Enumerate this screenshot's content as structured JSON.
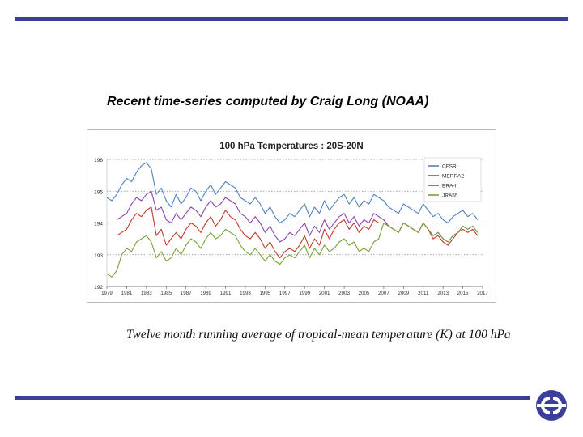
{
  "slide": {
    "title": "Recent time-series computed by Craig Long (NOAA)",
    "caption": "Twelve month running average of tropical-mean temperature (K) at 100 hPa",
    "rule_color": "#3b3f9a",
    "logo_icon": "ecmwf-logo-icon"
  },
  "chart_data": {
    "type": "line",
    "title": "100 hPa Temperatures : 20S-20N",
    "xlabel": "",
    "ylabel": "",
    "xlim": [
      1979,
      2017
    ],
    "ylim": [
      192,
      196
    ],
    "yticks": [
      192,
      193,
      194,
      195,
      196
    ],
    "xticks": [
      "1979",
      "1981",
      "1983",
      "1985",
      "1987",
      "1989",
      "1991",
      "1993",
      "1995",
      "1997",
      "1999",
      "2001",
      "2003",
      "2005",
      "2007",
      "2009",
      "2011",
      "2013",
      "2015",
      "2017"
    ],
    "grid": "dotted horizontal",
    "legend_position": "top-right",
    "series": [
      {
        "name": "CFSR",
        "color": "#4f81bd",
        "x": [
          1979,
          1979.5,
          1980,
          1980.5,
          1981,
          1981.5,
          1982,
          1982.5,
          1983,
          1983.5,
          1984,
          1984.5,
          1985,
          1985.5,
          1986,
          1986.5,
          1987,
          1987.5,
          1988,
          1988.5,
          1989,
          1989.5,
          1990,
          1990.5,
          1991,
          1991.5,
          1992,
          1992.5,
          1993,
          1993.5,
          1994,
          1994.5,
          1995,
          1995.5,
          1996,
          1996.5,
          1997,
          1997.5,
          1998,
          1998.5,
          1999,
          1999.5,
          2000,
          2000.5,
          2001,
          2001.5,
          2002,
          2002.5,
          2003,
          2003.5,
          2004,
          2004.5,
          2005,
          2005.5,
          2006,
          2006.5,
          2007,
          2007.5,
          2008,
          2008.5,
          2009,
          2009.5,
          2010,
          2010.5,
          2011,
          2011.5,
          2012,
          2012.5,
          2013,
          2013.5,
          2014,
          2014.5,
          2015,
          2015.5,
          2016,
          2016.5
        ],
        "values": [
          194.8,
          194.7,
          194.9,
          195.2,
          195.4,
          195.3,
          195.6,
          195.8,
          195.9,
          195.7,
          194.9,
          195.1,
          194.7,
          194.5,
          194.9,
          194.6,
          194.8,
          195.1,
          195.0,
          194.7,
          195.0,
          195.2,
          194.9,
          195.1,
          195.3,
          195.2,
          195.1,
          194.8,
          194.7,
          194.6,
          194.8,
          194.6,
          194.3,
          194.5,
          194.2,
          194.0,
          194.1,
          194.3,
          194.2,
          194.4,
          194.6,
          194.2,
          194.5,
          194.3,
          194.7,
          194.4,
          194.6,
          194.8,
          194.9,
          194.6,
          194.8,
          194.5,
          194.7,
          194.6,
          194.9,
          194.8,
          194.7,
          194.5,
          194.4,
          194.3,
          194.6,
          194.5,
          194.4,
          194.3,
          194.6,
          194.4,
          194.2,
          194.3,
          194.1,
          194.0,
          194.2,
          194.3,
          194.4,
          194.2,
          194.3,
          194.1
        ]
      },
      {
        "name": "MERRA2",
        "color": "#8e44ad",
        "x": [
          1980,
          1980.5,
          1981,
          1981.5,
          1982,
          1982.5,
          1983,
          1983.5,
          1984,
          1984.5,
          1985,
          1985.5,
          1986,
          1986.5,
          1987,
          1987.5,
          1988,
          1988.5,
          1989,
          1989.5,
          1990,
          1990.5,
          1991,
          1991.5,
          1992,
          1992.5,
          1993,
          1993.5,
          1994,
          1994.5,
          1995,
          1995.5,
          1996,
          1996.5,
          1997,
          1997.5,
          1998,
          1998.5,
          1999,
          1999.5,
          2000,
          2000.5,
          2001,
          2001.5,
          2002,
          2002.5,
          2003,
          2003.5,
          2004,
          2004.5,
          2005,
          2005.5,
          2006,
          2006.5,
          2007,
          2007.5,
          2008,
          2008.5,
          2009,
          2009.5,
          2010,
          2010.5,
          2011,
          2011.5,
          2012,
          2012.5,
          2013,
          2013.5,
          2014,
          2014.5,
          2015,
          2015.5,
          2016,
          2016.5
        ],
        "values": [
          194.1,
          194.2,
          194.3,
          194.6,
          194.8,
          194.7,
          194.9,
          195.0,
          194.4,
          194.5,
          194.1,
          194.0,
          194.3,
          194.1,
          194.3,
          194.5,
          194.4,
          194.2,
          194.5,
          194.7,
          194.5,
          194.6,
          194.8,
          194.7,
          194.6,
          194.3,
          194.2,
          194.0,
          194.2,
          194.0,
          193.7,
          193.9,
          193.6,
          193.4,
          193.5,
          193.7,
          193.6,
          193.8,
          194.0,
          193.6,
          193.9,
          193.7,
          194.1,
          193.8,
          194.0,
          194.2,
          194.3,
          194.0,
          194.2,
          193.9,
          194.1,
          194.0,
          194.3,
          194.2,
          194.1,
          193.9,
          193.8,
          193.7,
          194.0,
          193.9,
          193.8,
          193.7,
          194.0,
          193.8,
          193.6,
          193.7,
          193.5,
          193.4,
          193.6,
          193.7,
          193.9,
          193.8,
          193.9,
          193.7
        ]
      },
      {
        "name": "ERA-I",
        "color": "#c0392b",
        "x": [
          1980,
          1980.5,
          1981,
          1981.5,
          1982,
          1982.5,
          1983,
          1983.5,
          1984,
          1984.5,
          1985,
          1985.5,
          1986,
          1986.5,
          1987,
          1987.5,
          1988,
          1988.5,
          1989,
          1989.5,
          1990,
          1990.5,
          1991,
          1991.5,
          1992,
          1992.5,
          1993,
          1993.5,
          1994,
          1994.5,
          1995,
          1995.5,
          1996,
          1996.5,
          1997,
          1997.5,
          1998,
          1998.5,
          1999,
          1999.5,
          2000,
          2000.5,
          2001,
          2001.5,
          2002,
          2002.5,
          2003,
          2003.5,
          2004,
          2004.5,
          2005,
          2005.5,
          2006,
          2006.5,
          2007,
          2007.5,
          2008,
          2008.5,
          2009,
          2009.5,
          2010,
          2010.5,
          2011,
          2011.5,
          2012,
          2012.5,
          2013,
          2013.5,
          2014,
          2014.5,
          2015,
          2015.5,
          2016,
          2016.5
        ],
        "values": [
          193.6,
          193.7,
          193.8,
          194.1,
          194.3,
          194.2,
          194.4,
          194.5,
          193.6,
          193.8,
          193.3,
          193.5,
          193.7,
          193.5,
          193.8,
          194.0,
          193.9,
          193.7,
          194.0,
          194.2,
          193.9,
          194.1,
          194.4,
          194.2,
          194.1,
          193.8,
          193.6,
          193.5,
          193.7,
          193.5,
          193.2,
          193.4,
          193.1,
          192.9,
          193.1,
          193.2,
          193.1,
          193.3,
          193.6,
          193.2,
          193.5,
          193.3,
          193.8,
          193.5,
          193.8,
          194.0,
          194.1,
          193.8,
          194.0,
          193.7,
          193.9,
          193.8,
          194.1,
          194.0,
          194.0,
          193.9,
          193.8,
          193.7,
          194.0,
          193.9,
          193.8,
          193.7,
          194.0,
          193.8,
          193.5,
          193.6,
          193.4,
          193.3,
          193.5,
          193.7,
          193.8,
          193.7,
          193.8,
          193.6
        ]
      },
      {
        "name": "JRA55",
        "color": "#7aa03a",
        "x": [
          1979,
          1979.5,
          1980,
          1980.5,
          1981,
          1981.5,
          1982,
          1982.5,
          1983,
          1983.5,
          1984,
          1984.5,
          1985,
          1985.5,
          1986,
          1986.5,
          1987,
          1987.5,
          1988,
          1988.5,
          1989,
          1989.5,
          1990,
          1990.5,
          1991,
          1991.5,
          1992,
          1992.5,
          1993,
          1993.5,
          1994,
          1994.5,
          1995,
          1995.5,
          1996,
          1996.5,
          1997,
          1997.5,
          1998,
          1998.5,
          1999,
          1999.5,
          2000,
          2000.5,
          2001,
          2001.5,
          2002,
          2002.5,
          2003,
          2003.5,
          2004,
          2004.5,
          2005,
          2005.5,
          2006,
          2006.5,
          2007,
          2007.5,
          2008,
          2008.5,
          2009,
          2009.5,
          2010,
          2010.5,
          2011,
          2011.5,
          2012,
          2012.5,
          2013,
          2013.5,
          2014,
          2014.5,
          2015,
          2015.5,
          2016,
          2016.5
        ],
        "values": [
          192.4,
          192.3,
          192.5,
          193.0,
          193.2,
          193.1,
          193.4,
          193.5,
          193.6,
          193.4,
          192.9,
          193.1,
          192.8,
          192.9,
          193.2,
          193.0,
          193.3,
          193.5,
          193.4,
          193.2,
          193.5,
          193.7,
          193.5,
          193.6,
          193.8,
          193.7,
          193.6,
          193.3,
          193.1,
          193.0,
          193.2,
          193.0,
          192.8,
          193.0,
          192.8,
          192.7,
          192.9,
          193.0,
          192.9,
          193.1,
          193.3,
          192.9,
          193.2,
          193.0,
          193.3,
          193.1,
          193.2,
          193.4,
          193.5,
          193.3,
          193.4,
          193.1,
          193.2,
          193.1,
          193.4,
          193.5,
          194.0,
          193.9,
          193.8,
          193.7,
          194.0,
          193.9,
          193.8,
          193.7,
          194.0,
          193.8,
          193.6,
          193.7,
          193.5,
          193.4,
          193.6,
          193.7,
          193.9,
          193.8,
          193.9,
          193.7
        ]
      }
    ]
  }
}
